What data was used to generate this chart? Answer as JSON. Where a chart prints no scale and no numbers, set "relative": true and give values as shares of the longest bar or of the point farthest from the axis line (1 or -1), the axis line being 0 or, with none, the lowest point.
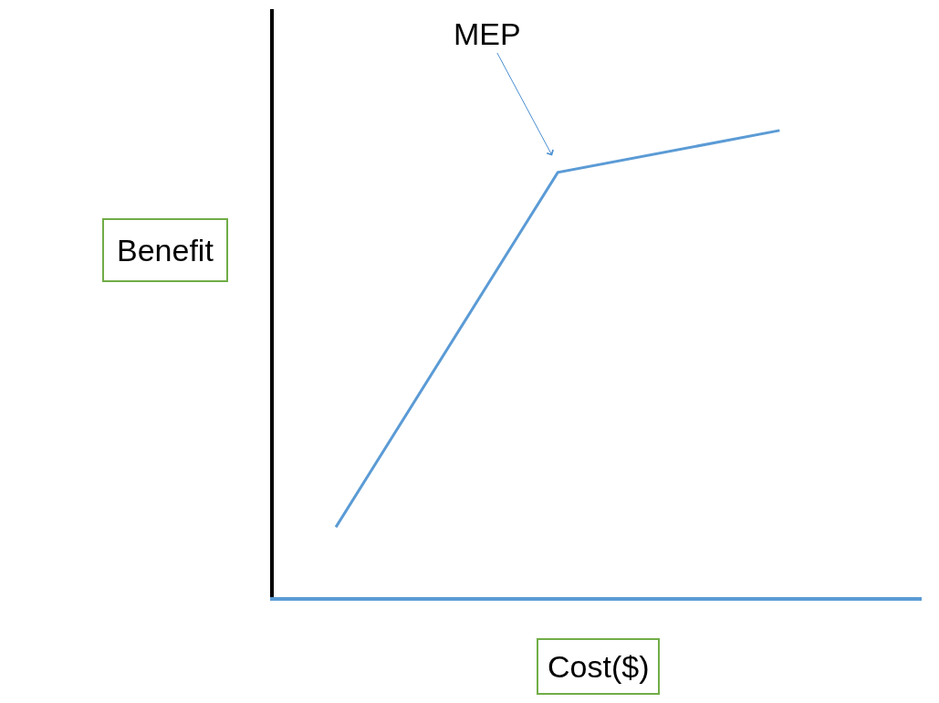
{
  "chart_data": {
    "type": "line",
    "relative": true,
    "xlabel": "Cost($)",
    "ylabel": "Benefit",
    "categories": [
      null,
      null,
      null
    ],
    "line_style": "solid",
    "series": [
      {
        "color": "#5b9bd5",
        "values": [
          0.15,
          0.91,
          1.0
        ]
      }
    ],
    "annotations": [
      "MEP"
    ]
  }
}
